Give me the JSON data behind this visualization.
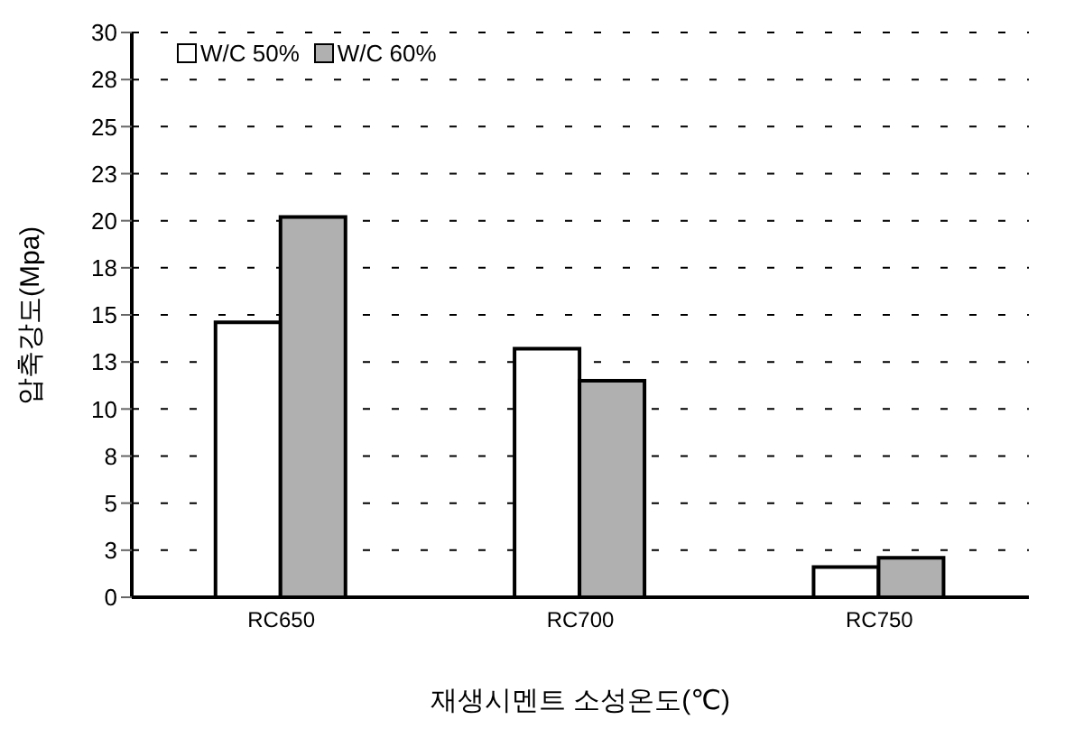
{
  "chart_data": {
    "type": "bar",
    "ylabel": "압축강도(Mpa)",
    "xlabel": "재생시멘트 소성온도(℃)",
    "categories": [
      "RC650",
      "RC700",
      "RC750"
    ],
    "series": [
      {
        "name": "W/C 50%",
        "color": "#ffffff",
        "values": [
          14.6,
          13.2,
          1.6
        ]
      },
      {
        "name": "W/C 60%",
        "color": "#b0b0b0",
        "values": [
          20.2,
          11.5,
          2.1
        ]
      }
    ],
    "ylim": [
      0,
      30
    ],
    "yticks": [
      0,
      {
        "value": 2.5,
        "label": "3"
      },
      5,
      {
        "value": 7.5,
        "label": "8"
      },
      10,
      {
        "value": 12.5,
        "label": "13"
      },
      15,
      {
        "value": 17.5,
        "label": "18"
      },
      20,
      {
        "value": 22.5,
        "label": "23"
      },
      25,
      {
        "value": 27.5,
        "label": "28"
      },
      30
    ],
    "grid": "y",
    "legend": "top left"
  }
}
